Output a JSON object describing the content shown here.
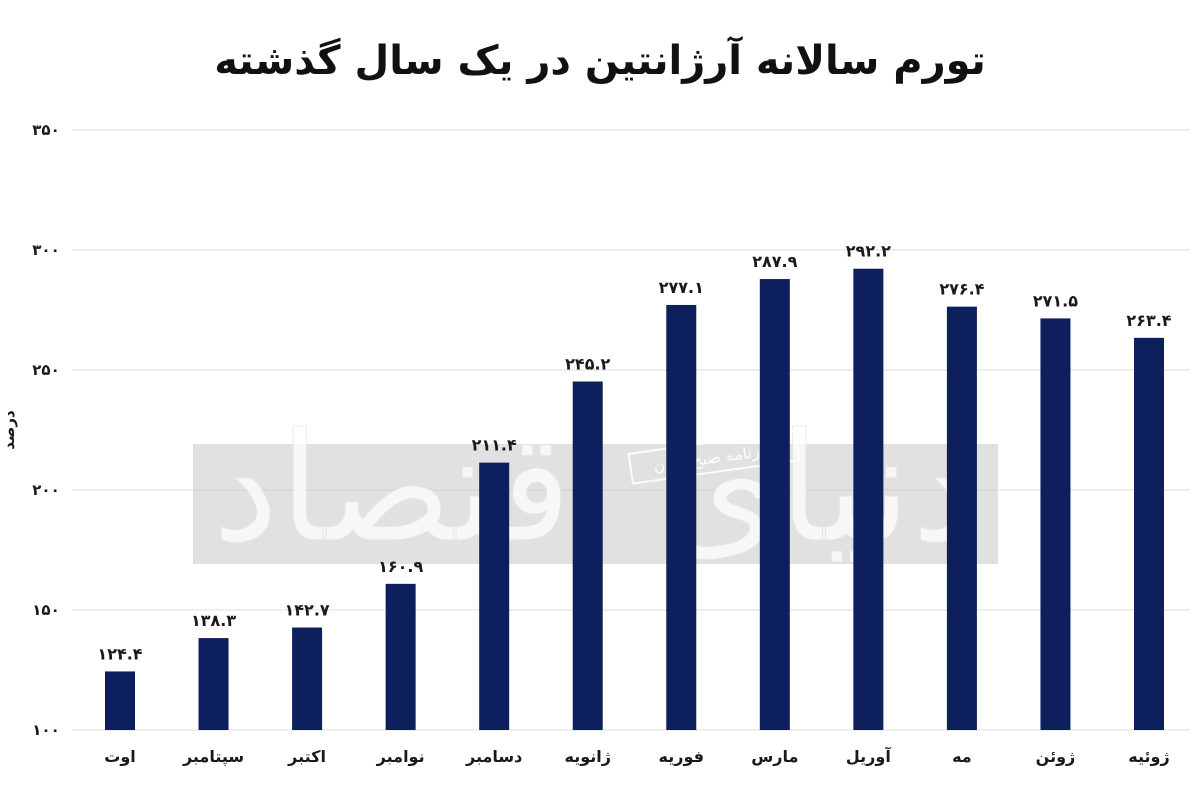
{
  "chart_data": {
    "type": "bar",
    "title": "تورم سالانه آرژانتین در یک سال گذشته",
    "xlabel": "",
    "ylabel": "درصد",
    "ylim": [
      100,
      350
    ],
    "yticks": [
      100,
      150,
      200,
      250,
      300,
      350
    ],
    "ytick_labels": [
      "۱۰۰",
      "۱۵۰",
      "۲۰۰",
      "۲۵۰",
      "۳۰۰",
      "۳۵۰"
    ],
    "grid": true,
    "legend": "none",
    "categories": [
      "اوت",
      "سپتامبر",
      "اکتبر",
      "نوامبر",
      "دسامبر",
      "ژانویه",
      "فوریه",
      "مارس",
      "آوریل",
      "مه",
      "ژوئن",
      "ژوئیه"
    ],
    "values": [
      124.4,
      138.3,
      142.7,
      160.9,
      211.4,
      245.2,
      277.1,
      287.9,
      292.2,
      276.4,
      271.5,
      263.4
    ],
    "value_labels": [
      "۱۲۴.۴",
      "۱۳۸.۳",
      "۱۴۲.۷",
      "۱۶۰.۹",
      "۲۱۱.۴",
      "۲۴۵.۲",
      "۲۷۷.۱",
      "۲۸۷.۹",
      "۲۹۲.۲",
      "۲۷۶.۴",
      "۲۷۱.۵",
      "۲۶۳.۴"
    ],
    "bar_color": "#0d1f5c",
    "grid_color": "#dcdcdc"
  },
  "watermark": {
    "logo_text": "دنیای اقتصاد",
    "tagline": "روزنامه صبح ایران"
  }
}
